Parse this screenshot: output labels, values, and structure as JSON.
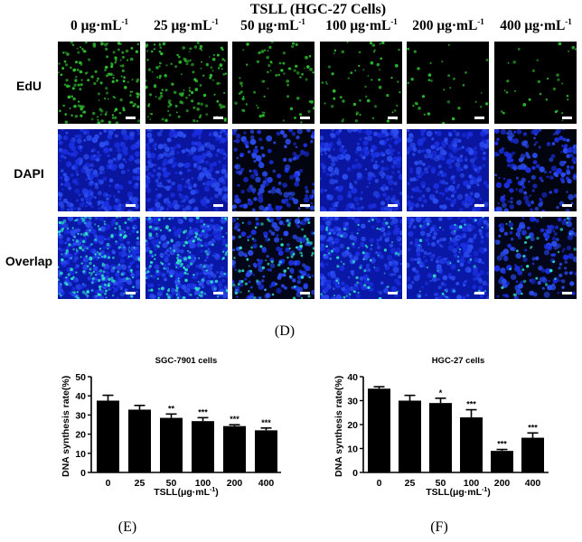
{
  "figure": {
    "title": "TSLL  (HGC-27 Cells)",
    "concentrations": [
      {
        "value": "0",
        "unit": "μg·mL",
        "exp": "-1"
      },
      {
        "value": "25",
        "unit": "μg·mL",
        "exp": "-1"
      },
      {
        "value": "50",
        "unit": "μg·mL",
        "exp": "-1"
      },
      {
        "value": "100",
        "unit": "μg·mL",
        "exp": "-1"
      },
      {
        "value": "200",
        "unit": "μg·mL",
        "exp": "-1"
      },
      {
        "value": "400",
        "unit": "μg·mL",
        "exp": "-1"
      }
    ],
    "rows": [
      "EdU",
      "DAPI",
      "Overlap"
    ],
    "panel_label": "(D)",
    "colors": {
      "edu": "#2fbf2f",
      "dapi": "#1a2fe0",
      "overlap_cyan": "#2fe0c8",
      "background": "#000000"
    },
    "cell_density": [
      [
        1.0,
        0.85,
        0.45,
        0.35,
        0.2,
        0.18
      ],
      [
        1.0,
        1.0,
        0.6,
        0.85,
        0.9,
        0.65
      ],
      [
        1.0,
        0.95,
        0.55,
        0.85,
        0.85,
        0.6
      ]
    ]
  },
  "chart_data": [
    {
      "type": "bar",
      "panel_label": "(E)",
      "title": "SGC-7901 cells",
      "xlabel": "TSLL(μg·mL",
      "xlabel_exp": "-1",
      "xlabel_close": ")",
      "ylabel": "DNA synthesis rate(%)",
      "categories": [
        "0",
        "25",
        "50",
        "100",
        "200",
        "400"
      ],
      "values": [
        37.5,
        32.8,
        28.5,
        26.8,
        24.2,
        22.0
      ],
      "errors": [
        2.8,
        2.2,
        2.0,
        1.8,
        0.7,
        1.2
      ],
      "significance": [
        "",
        "",
        "**",
        "***",
        "***",
        "***"
      ],
      "ylim": [
        0,
        50
      ],
      "yticks": [
        "0",
        "10",
        "20",
        "30",
        "40",
        "50"
      ],
      "bar_color": "#000000",
      "grid": false
    },
    {
      "type": "bar",
      "panel_label": "(F)",
      "title": "HGC-27 cells",
      "xlabel": "TSLL(μg·mL",
      "xlabel_exp": "-1",
      "xlabel_close": ")",
      "ylabel": "DNA synthesis rate(%)",
      "categories": [
        "0",
        "25",
        "50",
        "100",
        "200",
        "400"
      ],
      "values": [
        35.0,
        30.0,
        29.0,
        23.0,
        9.0,
        14.5
      ],
      "errors": [
        0.8,
        2.2,
        2.0,
        3.2,
        0.6,
        2.0
      ],
      "significance": [
        "",
        "",
        "*",
        "***",
        "***",
        "***"
      ],
      "ylim": [
        0,
        40
      ],
      "yticks": [
        "0",
        "10",
        "20",
        "30",
        "40"
      ],
      "bar_color": "#000000",
      "grid": false
    }
  ]
}
